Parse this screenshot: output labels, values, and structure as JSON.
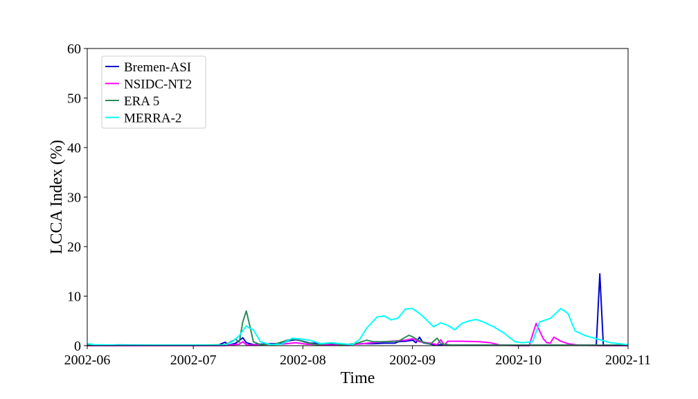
{
  "chart_data": {
    "type": "line",
    "xlabel": "Time",
    "ylabel": "LCCA Index (%)",
    "xlim": [
      "2002-06-01",
      "2002-11-01"
    ],
    "ylim": [
      0,
      60
    ],
    "xticks": [
      "2002-06",
      "2002-07",
      "2002-08",
      "2002-09",
      "2002-10",
      "2002-11"
    ],
    "xtick_dates": [
      "2002-06-01",
      "2002-07-01",
      "2002-08-01",
      "2002-09-01",
      "2002-10-01",
      "2002-11-01"
    ],
    "yticks": [
      0,
      10,
      20,
      30,
      40,
      50,
      60
    ],
    "grid": false,
    "legend_position": "top-left",
    "series": [
      {
        "name": "Bremen-ASI",
        "color": "#0000cd",
        "points": [
          [
            "2002-06-01",
            0.1
          ],
          [
            "2002-06-05",
            0.1
          ],
          [
            "2002-06-10",
            0.15
          ],
          [
            "2002-06-20",
            0.1
          ],
          [
            "2002-07-01",
            0.1
          ],
          [
            "2002-07-08",
            0.1
          ],
          [
            "2002-07-10",
            0.7
          ],
          [
            "2002-07-11",
            0.1
          ],
          [
            "2002-07-13",
            0.5
          ],
          [
            "2002-07-15",
            1.6
          ],
          [
            "2002-07-16",
            0.6
          ],
          [
            "2002-07-18",
            0.2
          ],
          [
            "2002-07-20",
            0.3
          ],
          [
            "2002-07-23",
            0.4
          ],
          [
            "2002-07-26",
            0.4
          ],
          [
            "2002-07-28",
            1.0
          ],
          [
            "2002-07-30",
            1.2
          ],
          [
            "2002-08-01",
            0.9
          ],
          [
            "2002-08-03",
            0.5
          ],
          [
            "2002-08-05",
            0.5
          ],
          [
            "2002-08-08",
            0.3
          ],
          [
            "2002-08-12",
            0.2
          ],
          [
            "2002-08-15",
            0.3
          ],
          [
            "2002-08-18",
            0.4
          ],
          [
            "2002-08-21",
            0.4
          ],
          [
            "2002-08-24",
            0.5
          ],
          [
            "2002-08-27",
            0.5
          ],
          [
            "2002-08-28",
            0.8
          ],
          [
            "2002-08-30",
            0.9
          ],
          [
            "2002-09-01",
            1.1
          ],
          [
            "2002-09-02",
            0.6
          ],
          [
            "2002-09-03",
            1.7
          ],
          [
            "2002-09-04",
            0.6
          ],
          [
            "2002-09-07",
            0.2
          ],
          [
            "2002-09-10",
            0.1
          ],
          [
            "2002-09-15",
            0.1
          ],
          [
            "2002-09-20",
            0.1
          ],
          [
            "2002-09-25",
            0.1
          ],
          [
            "2002-10-01",
            0.1
          ],
          [
            "2002-10-10",
            0.1
          ],
          [
            "2002-10-20",
            0.1
          ],
          [
            "2002-10-23",
            0.1
          ],
          [
            "2002-10-24",
            14.5
          ],
          [
            "2002-10-25",
            0.1
          ],
          [
            "2002-11-01",
            0.1
          ]
        ]
      },
      {
        "name": "NSIDC-NT2",
        "color": "#ff00ff",
        "points": [
          [
            "2002-06-01",
            0.0
          ],
          [
            "2002-07-01",
            0.0
          ],
          [
            "2002-07-10",
            0.0
          ],
          [
            "2002-07-14",
            0.3
          ],
          [
            "2002-07-15",
            0.8
          ],
          [
            "2002-07-16",
            0.2
          ],
          [
            "2002-07-18",
            0.1
          ],
          [
            "2002-07-22",
            0.3
          ],
          [
            "2002-07-26",
            0.3
          ],
          [
            "2002-07-30",
            0.6
          ],
          [
            "2002-08-02",
            0.3
          ],
          [
            "2002-08-06",
            0.2
          ],
          [
            "2002-08-10",
            0.1
          ],
          [
            "2002-08-14",
            0.2
          ],
          [
            "2002-08-18",
            0.4
          ],
          [
            "2002-08-22",
            0.7
          ],
          [
            "2002-08-26",
            0.9
          ],
          [
            "2002-08-30",
            1.1
          ],
          [
            "2002-09-01",
            1.4
          ],
          [
            "2002-09-03",
            0.8
          ],
          [
            "2002-09-06",
            0.5
          ],
          [
            "2002-09-08",
            0.2
          ],
          [
            "2002-09-09",
            1.2
          ],
          [
            "2002-09-10",
            0.1
          ],
          [
            "2002-09-11",
            0.9
          ],
          [
            "2002-09-15",
            0.9
          ],
          [
            "2002-09-20",
            0.8
          ],
          [
            "2002-09-23",
            0.6
          ],
          [
            "2002-09-26",
            0.1
          ],
          [
            "2002-10-01",
            0.0
          ],
          [
            "2002-10-04",
            0.0
          ],
          [
            "2002-10-06",
            4.5
          ],
          [
            "2002-10-08",
            1.4
          ],
          [
            "2002-10-09",
            0.6
          ],
          [
            "2002-10-10",
            0.5
          ],
          [
            "2002-10-11",
            1.7
          ],
          [
            "2002-10-13",
            0.9
          ],
          [
            "2002-10-15",
            0.4
          ],
          [
            "2002-10-18",
            0.1
          ],
          [
            "2002-10-25",
            0.0
          ],
          [
            "2002-11-01",
            0.0
          ]
        ]
      },
      {
        "name": "ERA 5",
        "color": "#2e8b57",
        "points": [
          [
            "2002-06-01",
            0.2
          ],
          [
            "2002-06-05",
            0.1
          ],
          [
            "2002-06-15",
            0.1
          ],
          [
            "2002-07-01",
            0.1
          ],
          [
            "2002-07-10",
            0.2
          ],
          [
            "2002-07-13",
            1.3
          ],
          [
            "2002-07-14",
            0.7
          ],
          [
            "2002-07-15",
            4.8
          ],
          [
            "2002-07-16",
            7.0
          ],
          [
            "2002-07-17",
            4.0
          ],
          [
            "2002-07-18",
            0.8
          ],
          [
            "2002-07-20",
            0.2
          ],
          [
            "2002-07-24",
            0.3
          ],
          [
            "2002-07-28",
            1.2
          ],
          [
            "2002-07-30",
            1.3
          ],
          [
            "2002-08-02",
            0.6
          ],
          [
            "2002-08-05",
            0.2
          ],
          [
            "2002-08-09",
            0.5
          ],
          [
            "2002-08-12",
            0.2
          ],
          [
            "2002-08-16",
            0.4
          ],
          [
            "2002-08-19",
            1.1
          ],
          [
            "2002-08-21",
            0.8
          ],
          [
            "2002-08-24",
            0.8
          ],
          [
            "2002-08-28",
            0.9
          ],
          [
            "2002-08-31",
            2.1
          ],
          [
            "2002-09-01",
            1.8
          ],
          [
            "2002-09-03",
            1.0
          ],
          [
            "2002-09-06",
            0.3
          ],
          [
            "2002-09-08",
            1.5
          ],
          [
            "2002-09-09",
            0.4
          ],
          [
            "2002-09-12",
            0.1
          ],
          [
            "2002-09-20",
            0.1
          ],
          [
            "2002-10-01",
            0.1
          ],
          [
            "2002-10-15",
            0.1
          ],
          [
            "2002-11-01",
            0.1
          ]
        ]
      },
      {
        "name": "MERRA-2",
        "color": "#00ffff",
        "points": [
          [
            "2002-06-01",
            0.4
          ],
          [
            "2002-06-03",
            0.2
          ],
          [
            "2002-06-10",
            0.1
          ],
          [
            "2002-07-01",
            0.1
          ],
          [
            "2002-07-10",
            0.1
          ],
          [
            "2002-07-12",
            0.8
          ],
          [
            "2002-07-14",
            2.0
          ],
          [
            "2002-07-16",
            4.0
          ],
          [
            "2002-07-17",
            3.5
          ],
          [
            "2002-07-18",
            3.2
          ],
          [
            "2002-07-20",
            0.8
          ],
          [
            "2002-07-23",
            0.2
          ],
          [
            "2002-07-26",
            0.3
          ],
          [
            "2002-07-29",
            1.5
          ],
          [
            "2002-08-01",
            1.3
          ],
          [
            "2002-08-03",
            1.1
          ],
          [
            "2002-08-06",
            0.4
          ],
          [
            "2002-08-09",
            0.6
          ],
          [
            "2002-08-12",
            0.4
          ],
          [
            "2002-08-15",
            0.2
          ],
          [
            "2002-08-17",
            1.2
          ],
          [
            "2002-08-19",
            3.5
          ],
          [
            "2002-08-22",
            5.8
          ],
          [
            "2002-08-24",
            6.0
          ],
          [
            "2002-08-26",
            5.2
          ],
          [
            "2002-08-28",
            5.6
          ],
          [
            "2002-08-30",
            7.4
          ],
          [
            "2002-09-01",
            7.5
          ],
          [
            "2002-09-03",
            6.5
          ],
          [
            "2002-09-05",
            5.2
          ],
          [
            "2002-09-07",
            3.8
          ],
          [
            "2002-09-09",
            4.6
          ],
          [
            "2002-09-11",
            4.1
          ],
          [
            "2002-09-13",
            3.2
          ],
          [
            "2002-09-15",
            4.5
          ],
          [
            "2002-09-17",
            5.0
          ],
          [
            "2002-09-19",
            5.3
          ],
          [
            "2002-09-21",
            4.8
          ],
          [
            "2002-09-24",
            3.8
          ],
          [
            "2002-09-27",
            2.5
          ],
          [
            "2002-09-30",
            0.8
          ],
          [
            "2002-10-02",
            0.6
          ],
          [
            "2002-10-05",
            0.8
          ],
          [
            "2002-10-07",
            4.8
          ],
          [
            "2002-10-10",
            5.5
          ],
          [
            "2002-10-13",
            7.5
          ],
          [
            "2002-10-15",
            6.5
          ],
          [
            "2002-10-17",
            3.0
          ],
          [
            "2002-10-20",
            2.0
          ],
          [
            "2002-10-24",
            1.2
          ],
          [
            "2002-10-27",
            0.6
          ],
          [
            "2002-11-01",
            0.2
          ]
        ]
      }
    ]
  }
}
